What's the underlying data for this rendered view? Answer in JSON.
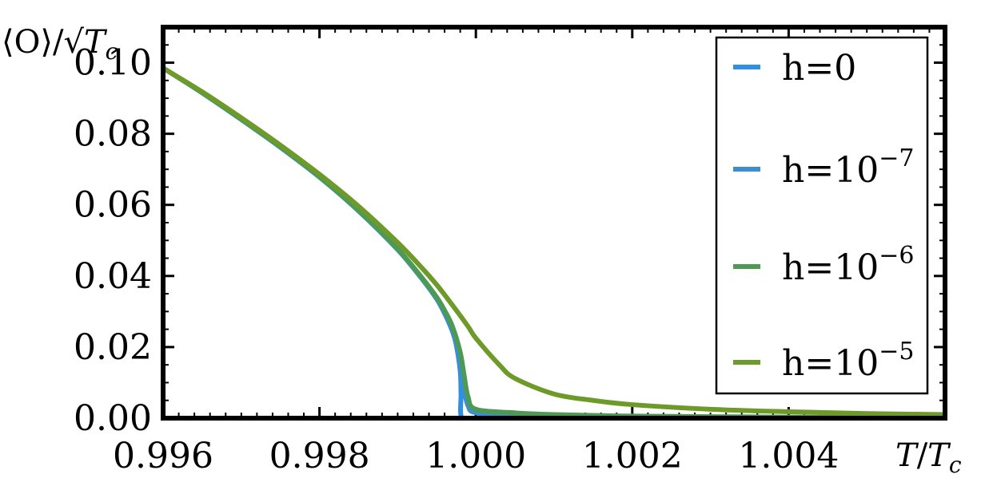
{
  "chart_data": {
    "type": "line",
    "title": "",
    "xlabel": "T/T_c",
    "ylabel": "⟨O⟩/√T_c",
    "xlim": [
      0.996,
      1.006
    ],
    "ylim": [
      0.0,
      0.11
    ],
    "xticks": [
      "0.996",
      "0.998",
      "1.000",
      "1.002",
      "1.004"
    ],
    "yticks": [
      "0.00",
      "0.02",
      "0.04",
      "0.06",
      "0.08",
      "0.10"
    ],
    "grid": false,
    "legend_position": "top-right",
    "series": [
      {
        "name": "h=0",
        "legend": {
          "base": "h=0",
          "exp": ""
        },
        "color": "#2e8fe6",
        "x": [
          0.996,
          0.9965,
          0.997,
          0.9975,
          0.998,
          0.9985,
          0.999,
          0.9993,
          0.9995,
          0.9996,
          0.9997,
          0.99975,
          0.9998,
          0.99981,
          0.99982,
          1.0,
          1.002,
          1.004,
          1.006
        ],
        "y": [
          0.0985,
          0.0915,
          0.084,
          0.0762,
          0.0678,
          0.0583,
          0.0474,
          0.0395,
          0.0335,
          0.0295,
          0.0245,
          0.0205,
          0.0132,
          0.007,
          0.0,
          0.0,
          0.0,
          0.0,
          0.0
        ]
      },
      {
        "name": "h=10^-7",
        "legend": {
          "base": "h=10",
          "exp": "−7"
        },
        "color": "#3b8fd0",
        "x": [
          0.996,
          0.9965,
          0.997,
          0.9975,
          0.998,
          0.9985,
          0.999,
          0.9993,
          0.9995,
          0.9996,
          0.9997,
          0.99975,
          0.9998,
          0.99985,
          0.9999,
          1.0,
          1.0005,
          1.001,
          1.002,
          1.004,
          1.006
        ],
        "y": [
          0.0985,
          0.0915,
          0.084,
          0.0762,
          0.0678,
          0.0583,
          0.0474,
          0.0395,
          0.0335,
          0.0295,
          0.0245,
          0.021,
          0.0155,
          0.008,
          0.0035,
          0.0015,
          0.0006,
          0.0004,
          0.0002,
          0.0001,
          0.0001
        ]
      },
      {
        "name": "h=10^-6",
        "legend": {
          "base": "h=10",
          "exp": "−6"
        },
        "color": "#4e9a54",
        "x": [
          0.996,
          0.9965,
          0.997,
          0.9975,
          0.998,
          0.9985,
          0.999,
          0.9993,
          0.9995,
          0.9996,
          0.9997,
          0.9998,
          0.99985,
          0.9999,
          1.0,
          1.0005,
          1.001,
          1.002,
          1.004,
          1.006
        ],
        "y": [
          0.0985,
          0.0916,
          0.0841,
          0.0763,
          0.0679,
          0.0584,
          0.0476,
          0.0398,
          0.034,
          0.0303,
          0.0258,
          0.0185,
          0.012,
          0.006,
          0.0025,
          0.0015,
          0.001,
          0.0006,
          0.0003,
          0.0002
        ]
      },
      {
        "name": "h=10^-5",
        "legend": {
          "base": "h=10",
          "exp": "−5"
        },
        "color": "#6e9a2a",
        "x": [
          0.996,
          0.9965,
          0.997,
          0.9975,
          0.998,
          0.9985,
          0.999,
          0.9993,
          0.9995,
          0.9997,
          0.9999,
          1.0,
          1.0003,
          1.0005,
          1.001,
          1.0015,
          1.002,
          1.003,
          1.004,
          1.005,
          1.006
        ],
        "y": [
          0.0985,
          0.0918,
          0.0845,
          0.0768,
          0.0686,
          0.0596,
          0.0494,
          0.0425,
          0.0375,
          0.0318,
          0.0258,
          0.0225,
          0.015,
          0.0112,
          0.0068,
          0.005,
          0.0038,
          0.0025,
          0.0018,
          0.0013,
          0.001
        ]
      }
    ]
  }
}
